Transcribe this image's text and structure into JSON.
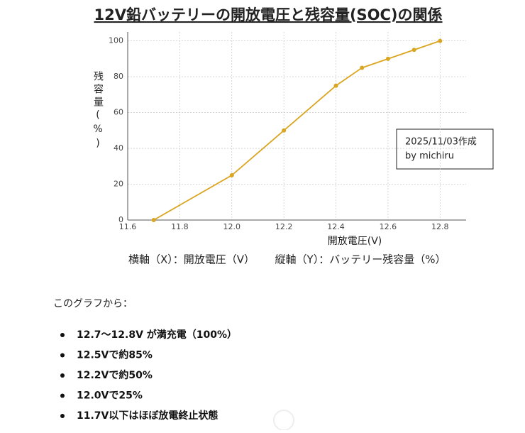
{
  "chart_data": {
    "type": "line",
    "title": "12V鉛バッテリーの開放電圧と残容量(SOC)の関係",
    "xlabel": "開放電圧(V)",
    "ylabel": "残容量(%)",
    "annotations": [
      "2025/11/03作成",
      "by michiru"
    ],
    "x": [
      11.7,
      12.0,
      12.2,
      12.4,
      12.5,
      12.6,
      12.7,
      12.8
    ],
    "series": [
      {
        "color": "#daa520",
        "values": [
          0,
          25,
          50,
          75,
          85,
          90,
          95,
          100
        ]
      }
    ],
    "xlim": [
      11.6,
      12.9
    ],
    "xticks": [
      11.6,
      11.8,
      {
        "value": 12,
        "label": "12.0"
      },
      12.2,
      12.4,
      12.6,
      12.8
    ],
    "ylim": [
      0,
      105
    ],
    "yticks": [
      0,
      20,
      40,
      60,
      80,
      100
    ],
    "grid": true
  },
  "caption": [
    "横軸（X）：開放電圧（V）",
    "縦軸（Y）：バッテリー残容量（%）"
  ],
  "body": {
    "intro": "このグラフから：",
    "bullets": [
      "12.7〜12.8V が満充電（100%）",
      "12.5Vで約85%",
      "12.2Vで約50%",
      "12.0Vで25%",
      "11.7V以下はほぼ放電終止状態"
    ]
  }
}
